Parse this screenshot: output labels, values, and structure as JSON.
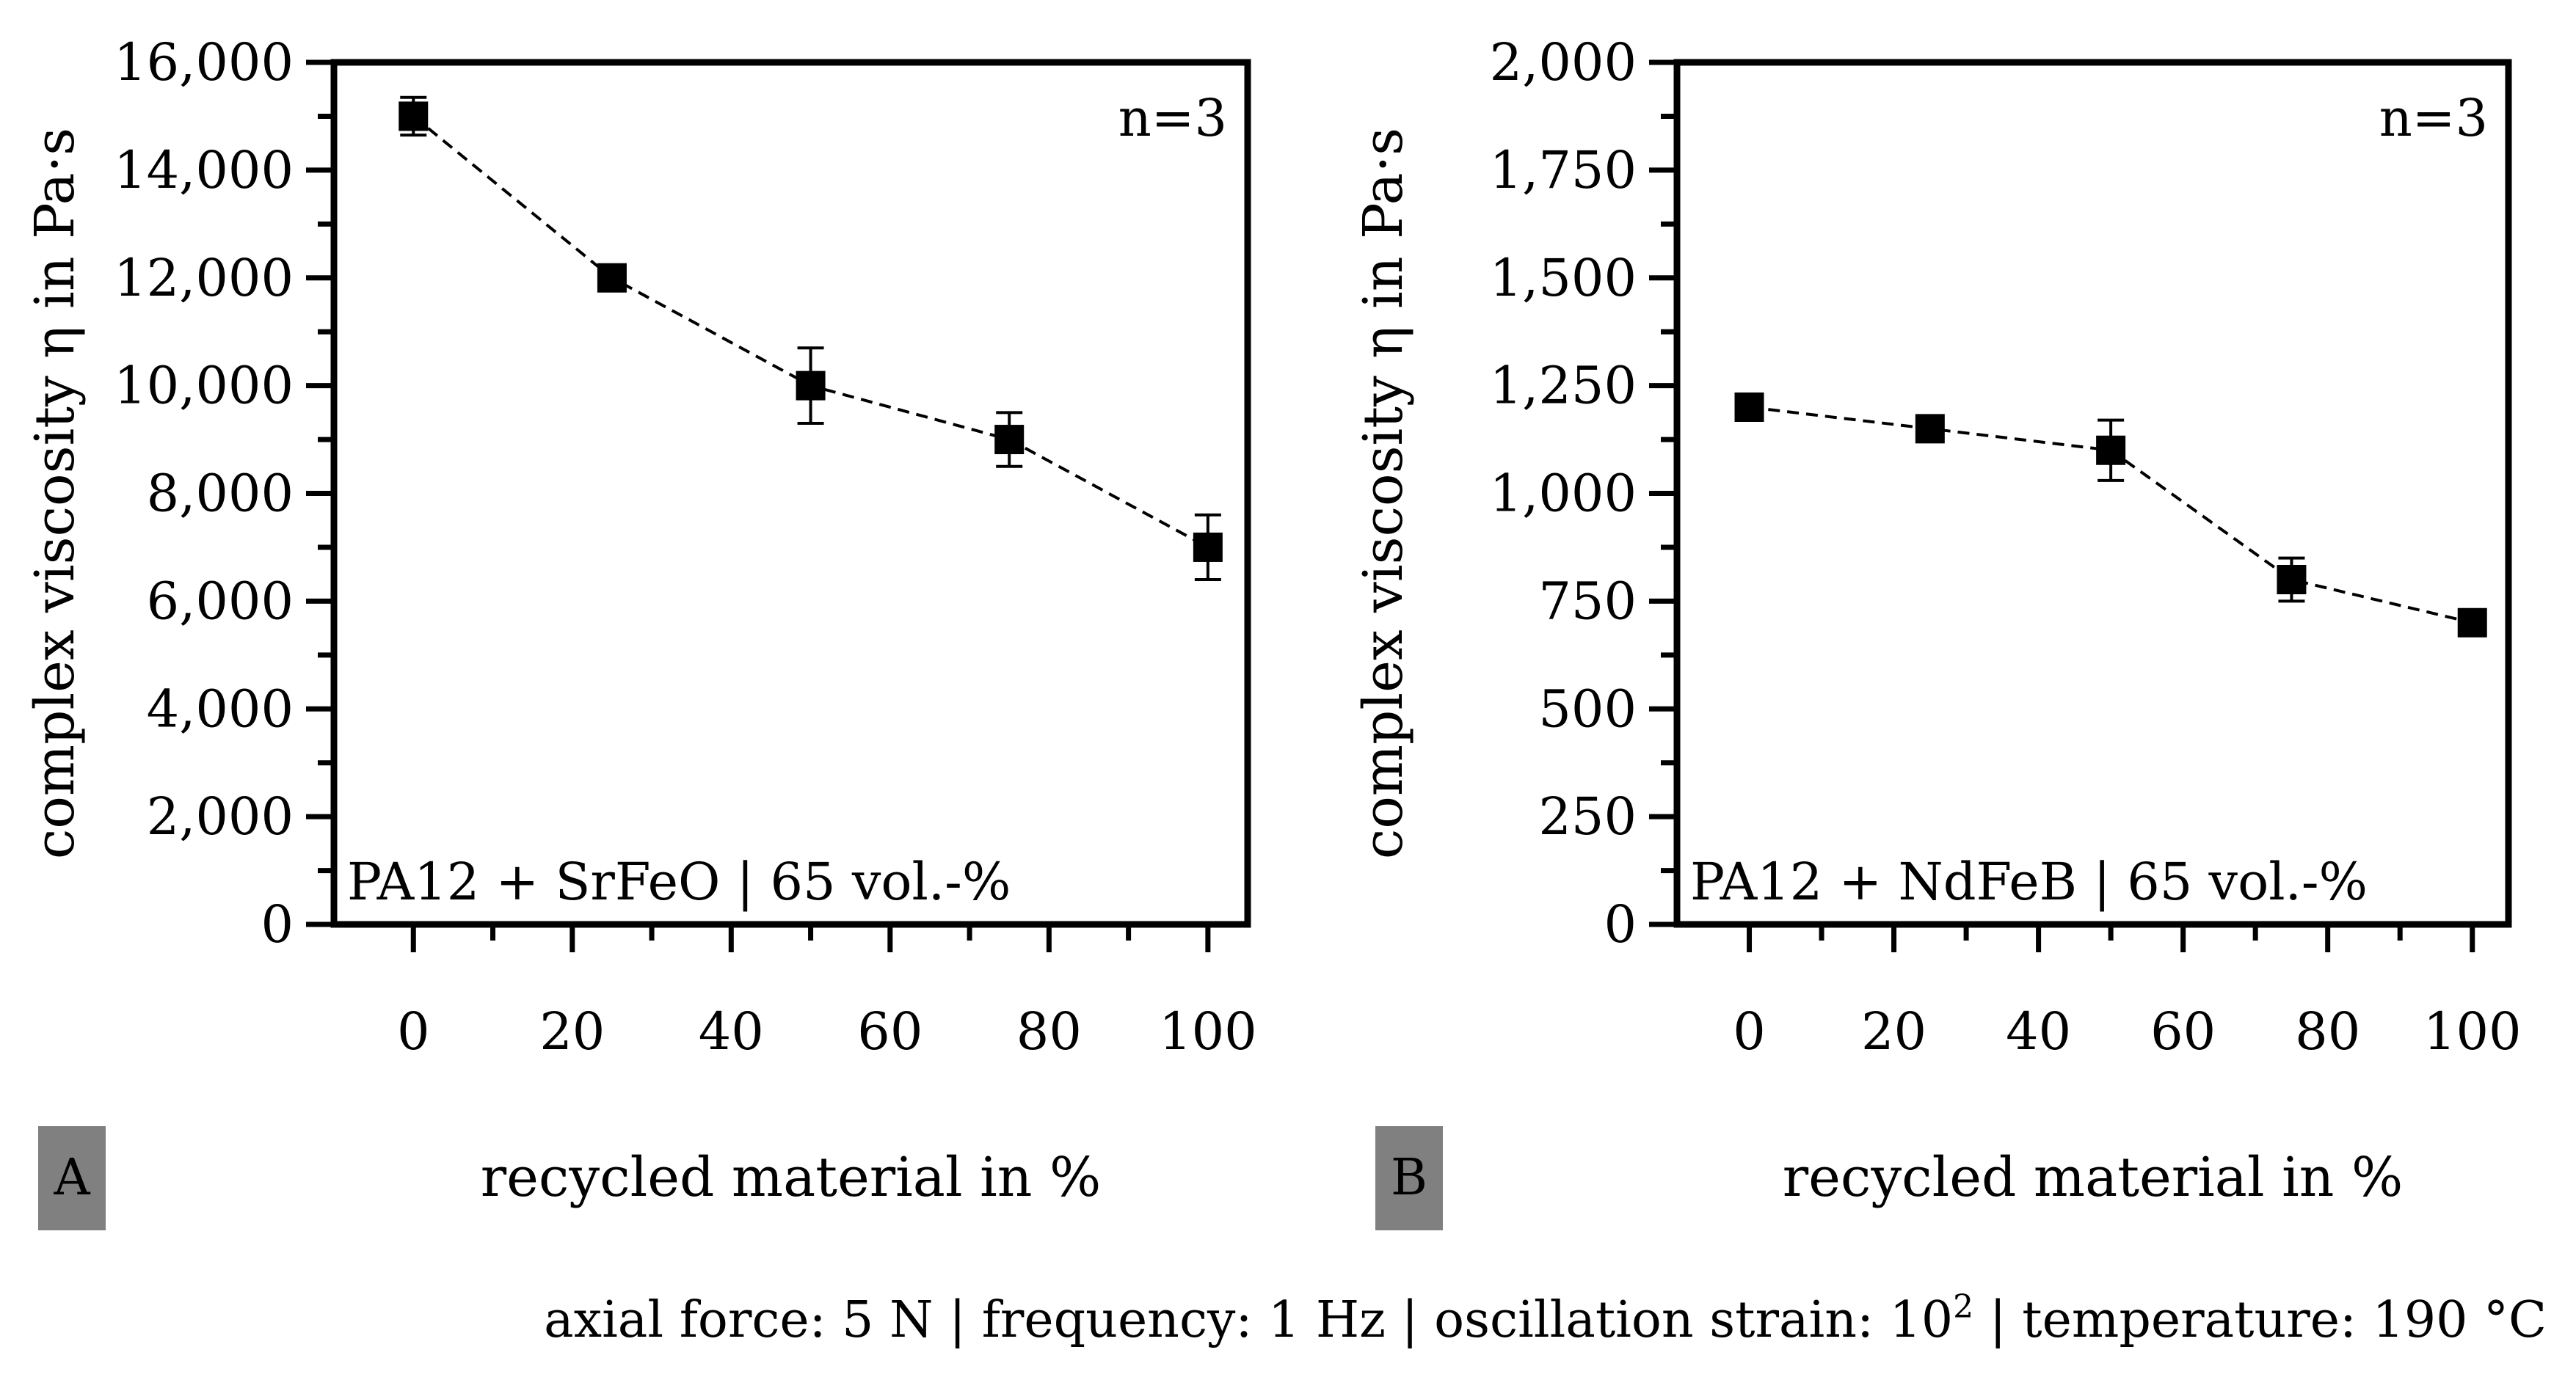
{
  "figure": {
    "footer_prefix": "axial force: 5 N | frequency: 1 Hz | oscillation strain: 10",
    "footer_exponent": "2",
    "footer_suffix": " | temperature: 190 °C"
  },
  "chart_data": [
    {
      "type": "line",
      "panel_label": "A",
      "xlabel": "recycled material in %",
      "ylabel": "complex viscosity η in Pa·s",
      "annotation_top_right": "n=3",
      "annotation_bottom_left": "PA12 + SrFeO | 65 vol.-%",
      "xlim": [
        -10,
        105
      ],
      "ylim": [
        0,
        16000
      ],
      "x_ticks": [
        0,
        20,
        40,
        60,
        80,
        100
      ],
      "x_tick_labels": [
        "0",
        "20",
        "40",
        "60",
        "80",
        "100"
      ],
      "y_ticks": [
        0,
        2000,
        4000,
        6000,
        8000,
        10000,
        12000,
        14000,
        16000
      ],
      "y_tick_labels": [
        "0",
        "2,000",
        "4,000",
        "6,000",
        "8,000",
        "10,000",
        "12,000",
        "14,000",
        "16,000"
      ],
      "x_minor_step": 10,
      "y_minor_step": 1000,
      "series": [
        {
          "name": "PA12 + SrFeO",
          "x": [
            0,
            25,
            50,
            75,
            100
          ],
          "values": [
            15000,
            12000,
            10000,
            9000,
            7000
          ],
          "errors": [
            350,
            150,
            700,
            500,
            600
          ]
        }
      ]
    },
    {
      "type": "line",
      "panel_label": "B",
      "xlabel": "recycled material in %",
      "ylabel": "complex viscosity η in Pa·s",
      "annotation_top_right": "n=3",
      "annotation_bottom_left": "PA12 + NdFeB | 65 vol.-%",
      "xlim": [
        -10,
        105
      ],
      "ylim": [
        0,
        2000
      ],
      "x_ticks": [
        0,
        20,
        40,
        60,
        80,
        100
      ],
      "x_tick_labels": [
        "0",
        "20",
        "40",
        "60",
        "80",
        "100"
      ],
      "y_ticks": [
        0,
        250,
        500,
        750,
        1000,
        1250,
        1500,
        1750,
        2000
      ],
      "y_tick_labels": [
        "0",
        "250",
        "500",
        "750",
        "1,000",
        "1,250",
        "1,500",
        "1,750",
        "2,000"
      ],
      "x_minor_step": 10,
      "y_minor_step": 125,
      "series": [
        {
          "name": "PA12 + NdFeB",
          "x": [
            0,
            25,
            50,
            75,
            100
          ],
          "values": [
            1200,
            1150,
            1100,
            800,
            700
          ],
          "errors": [
            30,
            20,
            70,
            50,
            15
          ]
        }
      ]
    }
  ]
}
